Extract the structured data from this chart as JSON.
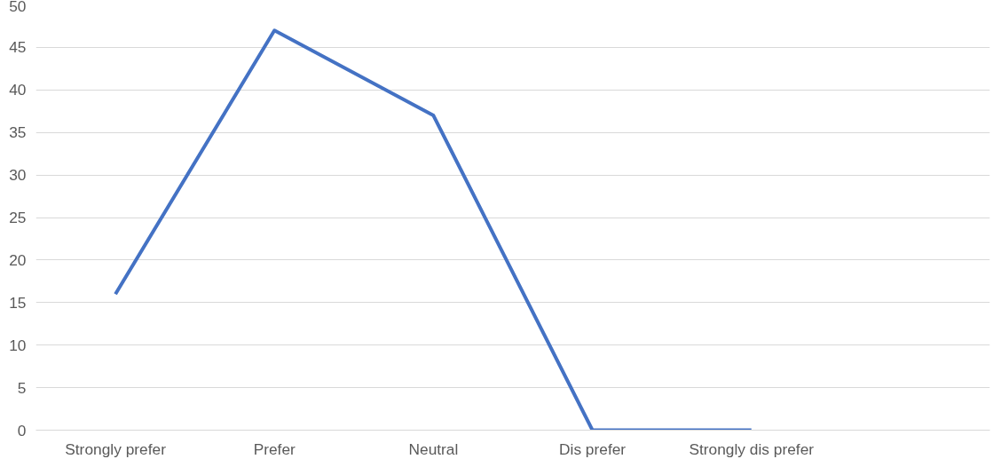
{
  "chart_data": {
    "type": "line",
    "categories": [
      "Strongly prefer",
      "Prefer",
      "Neutral",
      "Dis prefer",
      "Strongly dis prefer",
      null
    ],
    "values": [
      16,
      47,
      37,
      0,
      0,
      null
    ],
    "color": "#4472c4",
    "ylim": [
      0,
      50
    ],
    "yticks": [
      0,
      5,
      10,
      15,
      20,
      25,
      30,
      35,
      40,
      45,
      50
    ],
    "grid": "y"
  }
}
